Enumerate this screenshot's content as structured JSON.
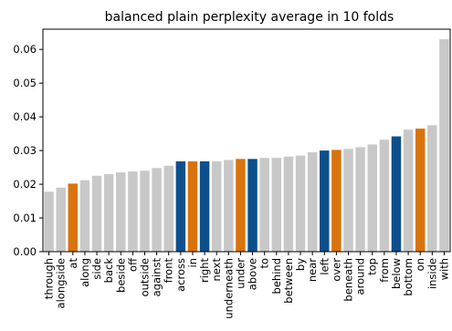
{
  "chart_data": {
    "type": "bar",
    "title": "balanced plain perplexity average in 10 folds",
    "xlabel": "",
    "ylabel": "",
    "ylim": [
      0,
      0.066
    ],
    "yticks": [
      "0.00",
      "0.01",
      "0.02",
      "0.03",
      "0.04",
      "0.05",
      "0.06"
    ],
    "grid": false,
    "colors": {
      "grey": "#c8c8c8",
      "orange": "#d9730d",
      "blue": "#0c4f8a"
    },
    "categories": [
      "through",
      "alongside",
      "at",
      "along",
      "side",
      "back",
      "beside",
      "off",
      "outside",
      "against",
      "front",
      "across",
      "in",
      "right",
      "next",
      "underneath",
      "under",
      "above",
      "to",
      "behind",
      "between",
      "by",
      "near",
      "left",
      "over",
      "beneath",
      "around",
      "top",
      "from",
      "below",
      "bottom",
      "on",
      "inside",
      "with"
    ],
    "values": [
      0.0178,
      0.019,
      0.0202,
      0.0212,
      0.0225,
      0.023,
      0.0235,
      0.0238,
      0.024,
      0.0248,
      0.0255,
      0.0268,
      0.0268,
      0.0268,
      0.0268,
      0.0272,
      0.0275,
      0.0275,
      0.0278,
      0.0278,
      0.0282,
      0.0285,
      0.0295,
      0.03,
      0.0302,
      0.0305,
      0.031,
      0.0318,
      0.0332,
      0.0342,
      0.0362,
      0.0365,
      0.0375,
      0.063
    ],
    "bar_colors": [
      "grey",
      "grey",
      "orange",
      "grey",
      "grey",
      "grey",
      "grey",
      "grey",
      "grey",
      "grey",
      "grey",
      "blue",
      "orange",
      "blue",
      "grey",
      "grey",
      "orange",
      "blue",
      "grey",
      "grey",
      "grey",
      "grey",
      "grey",
      "blue",
      "orange",
      "grey",
      "grey",
      "grey",
      "grey",
      "blue",
      "grey",
      "orange",
      "grey",
      "grey"
    ]
  }
}
